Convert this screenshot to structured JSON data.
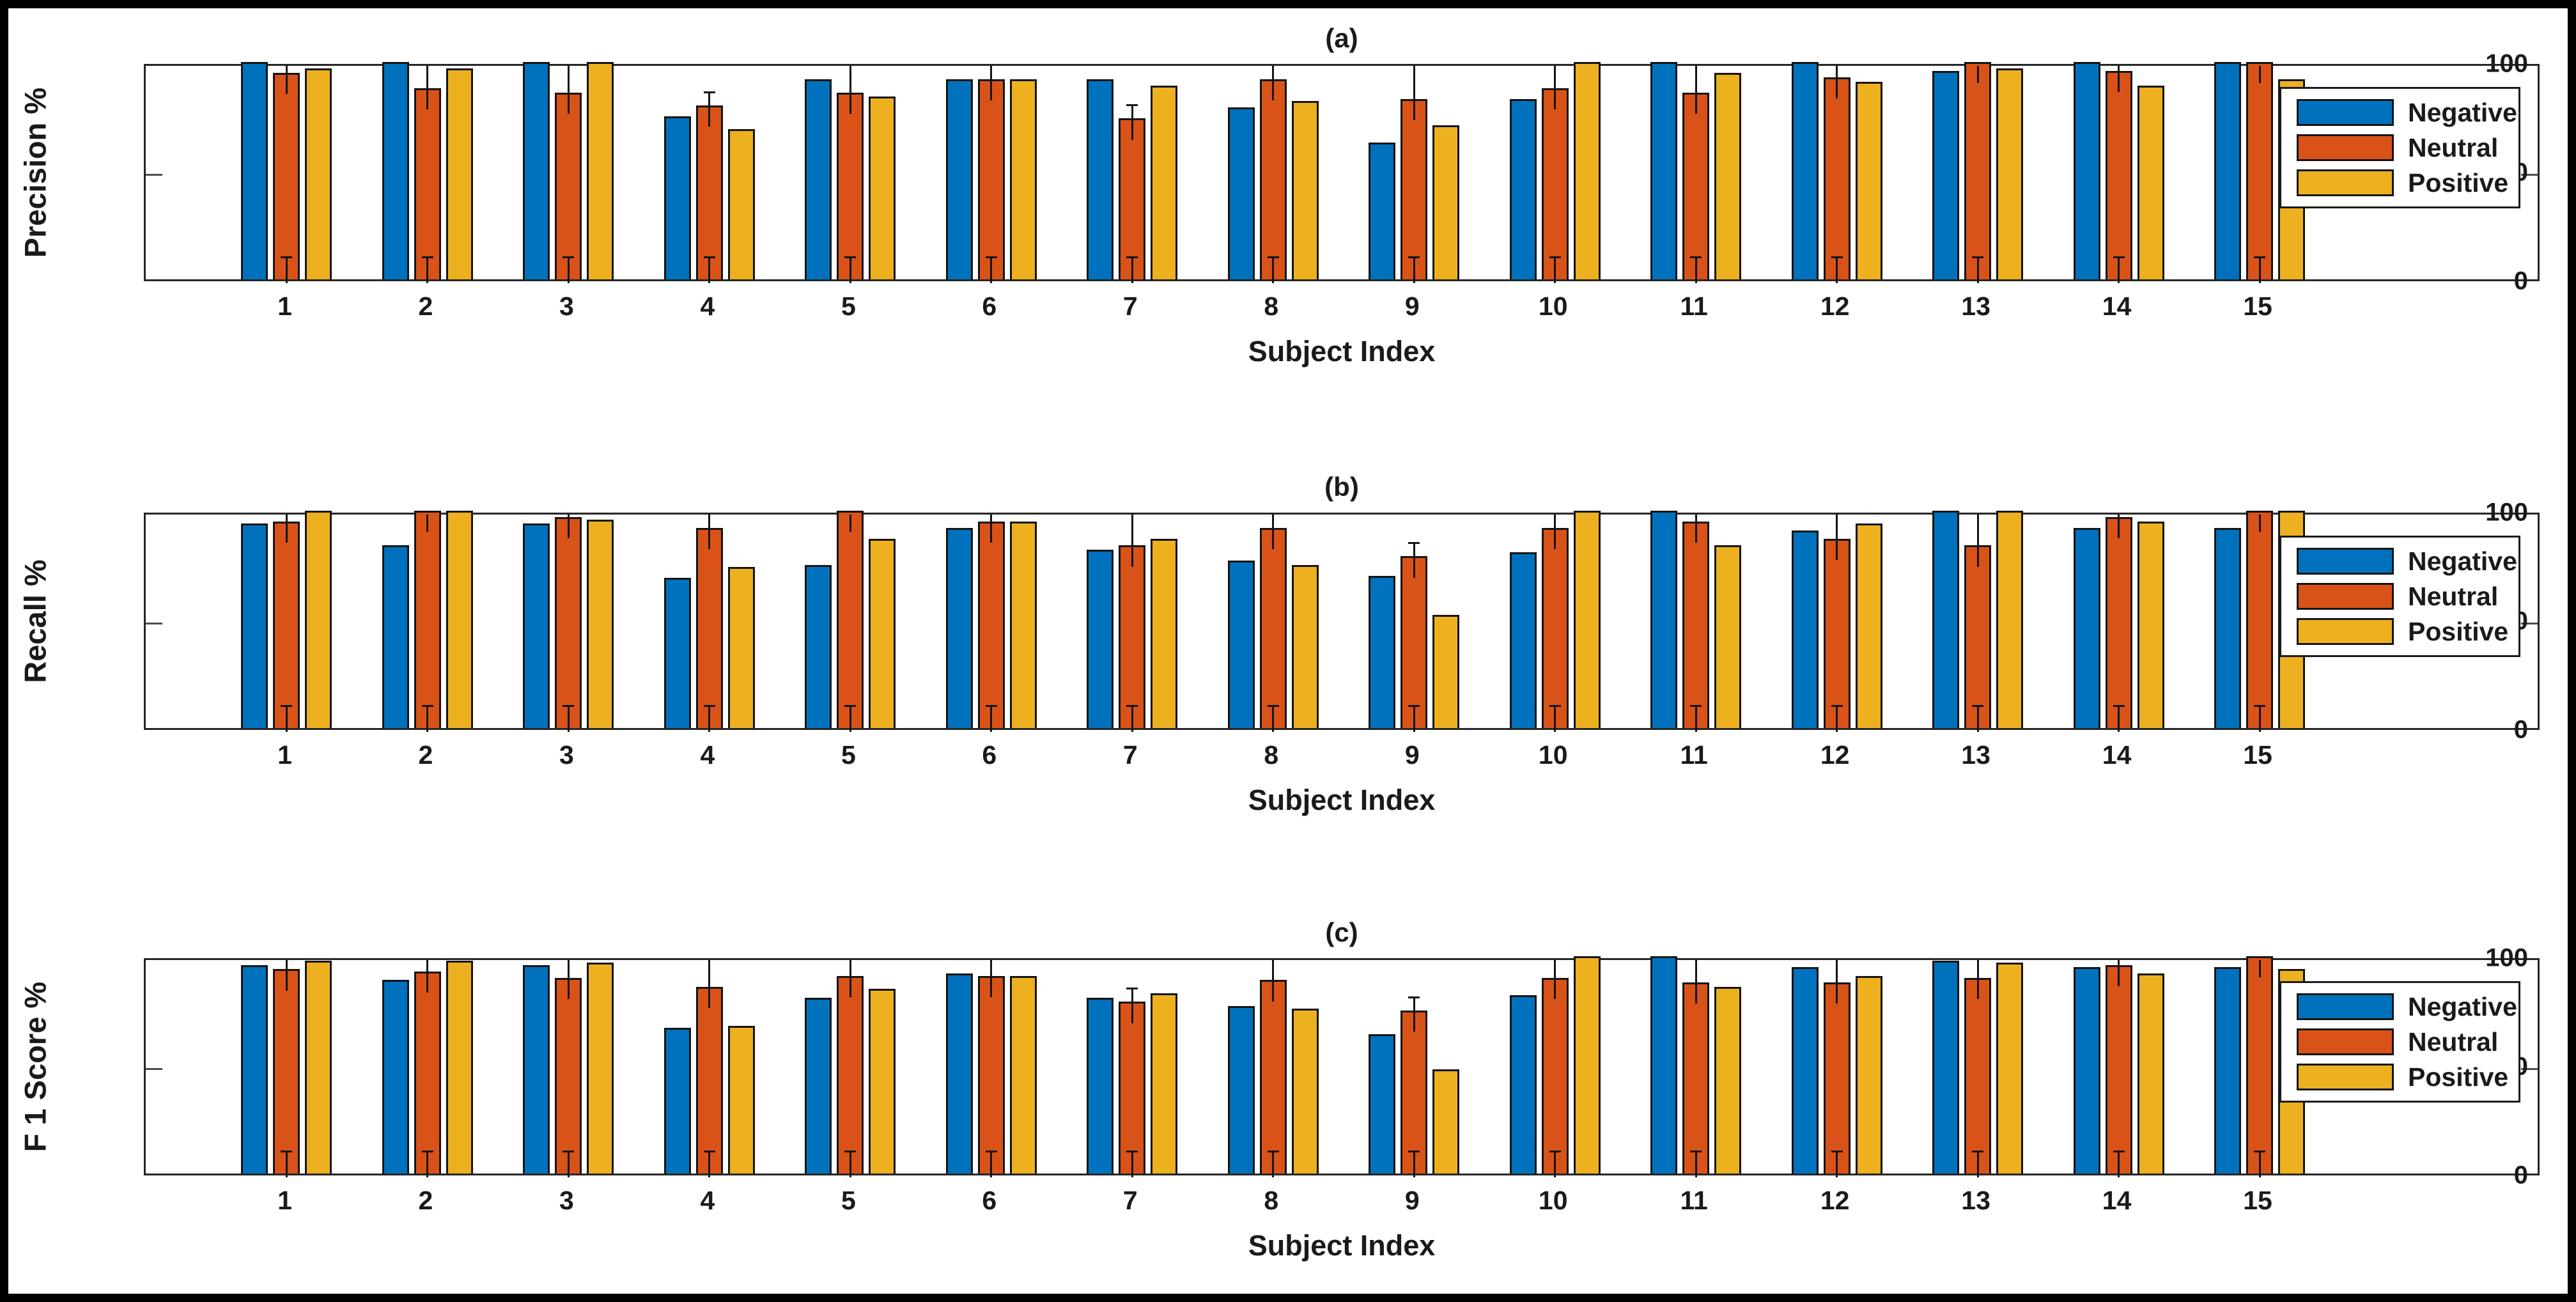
{
  "figure": {
    "frame_color": "#000000",
    "background": "#ffffff",
    "xlabel": "Subject Index",
    "legend_entries": [
      "Negative",
      "Neutral",
      "Positive"
    ],
    "colors": {
      "negative": "#0072BD",
      "neutral": "#D95319",
      "positive": "#EDB120",
      "bar_edge": "#141414",
      "axis_spine": "#262626",
      "text": "#1a1a1a"
    }
  },
  "chart_data": [
    {
      "type": "bar",
      "title": "(a)",
      "ylabel": "Precision %",
      "xlabel": "Subject Index",
      "ylim": [
        0,
        100
      ],
      "yticks": [
        0,
        50,
        100
      ],
      "grid": false,
      "legend_position": "upper right inside, overlapping plot",
      "error_bars": "on Neutral series, upper whiskers clipped at 100, lower segment near 0-12",
      "categories": [
        1,
        2,
        3,
        4,
        5,
        6,
        7,
        8,
        9,
        10,
        11,
        12,
        13,
        14,
        15
      ],
      "series": [
        {
          "name": "Negative",
          "color": "#0072BD",
          "values": [
            100,
            100,
            100,
            75,
            92,
            92,
            92,
            79,
            63,
            83,
            100,
            100,
            96,
            100,
            100
          ]
        },
        {
          "name": "Neutral",
          "color": "#D95319",
          "values": [
            95,
            88,
            86,
            80,
            86,
            92,
            74,
            92,
            83,
            88,
            86,
            93,
            100,
            96,
            100
          ]
        },
        {
          "name": "Positive",
          "color": "#EDB120",
          "values": [
            97,
            97,
            100,
            69,
            84,
            92,
            89,
            82,
            71,
            100,
            95,
            91,
            97,
            89,
            92
          ]
        }
      ]
    },
    {
      "type": "bar",
      "title": "(b)",
      "ylabel": "Recall %",
      "xlabel": "Subject Index",
      "ylim": [
        0,
        100
      ],
      "yticks": [
        0,
        50,
        100
      ],
      "grid": false,
      "legend_position": "upper right inside, overlapping plot",
      "error_bars": "on Neutral series, upper whiskers clipped at 100, lower segment near 0-12",
      "categories": [
        1,
        2,
        3,
        4,
        5,
        6,
        7,
        8,
        9,
        10,
        11,
        12,
        13,
        14,
        15
      ],
      "series": [
        {
          "name": "Negative",
          "color": "#0072BD",
          "values": [
            94,
            84,
            94,
            69,
            75,
            92,
            82,
            77,
            70,
            81,
            100,
            91,
            100,
            92,
            92
          ]
        },
        {
          "name": "Neutral",
          "color": "#D95319",
          "values": [
            95,
            100,
            97,
            92,
            100,
            95,
            84,
            92,
            79,
            92,
            95,
            87,
            84,
            97,
            100
          ]
        },
        {
          "name": "Positive",
          "color": "#EDB120",
          "values": [
            100,
            100,
            96,
            74,
            87,
            95,
            87,
            75,
            52,
            100,
            84,
            94,
            100,
            95,
            100
          ]
        }
      ]
    },
    {
      "type": "bar",
      "title": "(c)",
      "ylabel": "F 1 Score %",
      "xlabel": "Subject Index",
      "ylim": [
        0,
        100
      ],
      "yticks": [
        0,
        50,
        100
      ],
      "grid": false,
      "legend_position": "upper right inside, overlapping plot",
      "error_bars": "on Neutral series, upper whiskers clipped at 100, lower segment near 0-12",
      "categories": [
        1,
        2,
        3,
        4,
        5,
        6,
        7,
        8,
        9,
        10,
        11,
        12,
        13,
        14,
        15
      ],
      "series": [
        {
          "name": "Negative",
          "color": "#0072BD",
          "values": [
            96,
            89,
            96,
            67,
            81,
            92,
            81,
            77,
            64,
            82,
            100,
            95,
            98,
            95,
            95
          ]
        },
        {
          "name": "Neutral",
          "color": "#D95319",
          "values": [
            94,
            93,
            90,
            86,
            91,
            91,
            79,
            89,
            75,
            90,
            88,
            88,
            90,
            96,
            100
          ]
        },
        {
          "name": "Positive",
          "color": "#EDB120",
          "values": [
            98,
            98,
            97,
            68,
            85,
            91,
            83,
            76,
            48,
            100,
            86,
            91,
            97,
            92,
            94
          ]
        }
      ]
    }
  ]
}
